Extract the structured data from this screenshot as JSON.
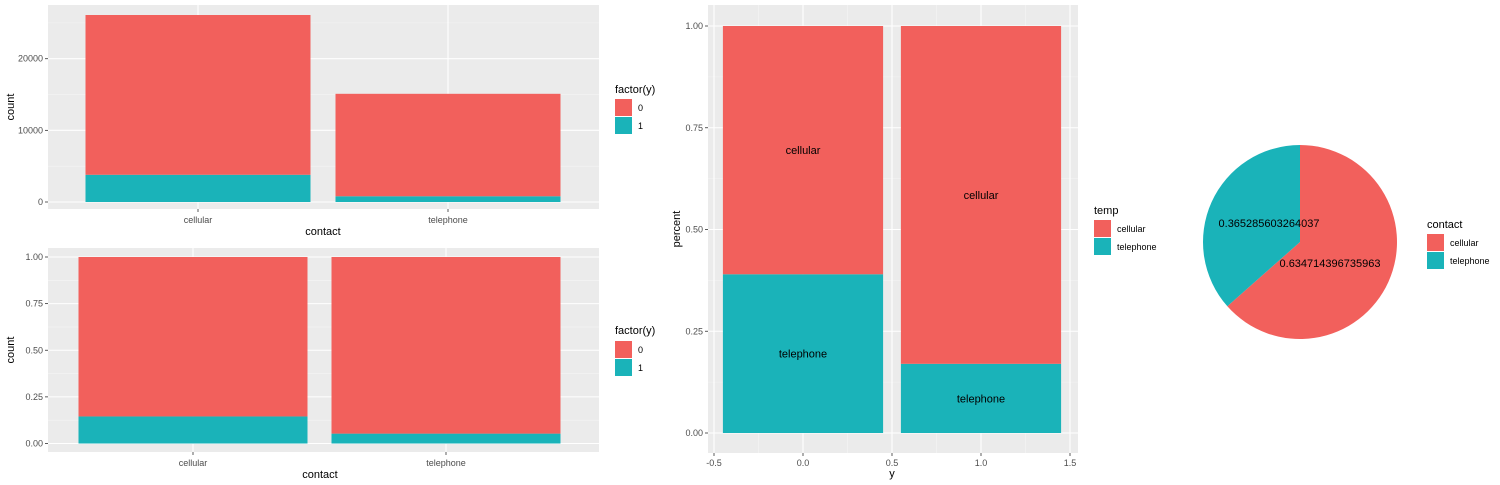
{
  "chart_data": [
    {
      "type": "bar",
      "stacked": true,
      "categories": [
        "cellular",
        "telephone"
      ],
      "series": [
        {
          "name": "0",
          "color": "#F2605C",
          "values": [
            22300,
            14300
          ]
        },
        {
          "name": "1",
          "color": "#1AB3B9",
          "values": [
            3800,
            800
          ]
        }
      ],
      "xlabel": "contact",
      "ylabel": "count",
      "ylim": [
        0,
        26100
      ],
      "yticks": [
        0,
        10000,
        20000
      ],
      "ytick_labels": [
        "0",
        "10000",
        "20000"
      ],
      "legend_title": "factor(y)",
      "legend_position": "right",
      "grid": true
    },
    {
      "type": "bar",
      "stacked": true,
      "categories": [
        "cellular",
        "telephone"
      ],
      "series": [
        {
          "name": "0",
          "color": "#F2605C",
          "values": [
            0.855,
            0.947
          ]
        },
        {
          "name": "1",
          "color": "#1AB3B9",
          "values": [
            0.145,
            0.053
          ]
        }
      ],
      "xlabel": "contact",
      "ylabel": "count",
      "ylim": [
        0,
        1
      ],
      "yticks": [
        0,
        0.25,
        0.5,
        0.75,
        1
      ],
      "ytick_labels": [
        "0.00",
        "0.25",
        "0.50",
        "0.75",
        "1.00"
      ],
      "legend_title": "factor(y)",
      "legend_position": "right",
      "grid": true
    },
    {
      "type": "bar",
      "stacked": true,
      "x": [
        0,
        1
      ],
      "series": [
        {
          "name": "cellular",
          "color": "#F2605C",
          "values": [
            0.61,
            0.83
          ],
          "labels": [
            "cellular",
            "cellular"
          ]
        },
        {
          "name": "telephone",
          "color": "#1AB3B9",
          "values": [
            0.39,
            0.17
          ],
          "labels": [
            "telephone",
            "telephone"
          ]
        }
      ],
      "xlabel": "y",
      "ylabel": "percent",
      "xlim": [
        -0.5,
        1.5
      ],
      "xticks": [
        -0.5,
        0,
        0.5,
        1,
        1.5
      ],
      "xtick_labels": [
        "-0.5",
        "0.0",
        "0.5",
        "1.0",
        "1.5"
      ],
      "ylim": [
        0,
        1
      ],
      "yticks": [
        0,
        0.25,
        0.5,
        0.75,
        1
      ],
      "ytick_labels": [
        "0.00",
        "0.25",
        "0.50",
        "0.75",
        "1.00"
      ],
      "legend_title": "temp",
      "legend_position": "right",
      "grid": true
    },
    {
      "type": "pie",
      "slices": [
        {
          "name": "cellular",
          "value": 0.634714396735963,
          "label": "0.634714396735963",
          "color": "#F2605C"
        },
        {
          "name": "telephone",
          "value": 0.365285603264037,
          "label": "0.365285603264037",
          "color": "#1AB3B9"
        }
      ],
      "legend_title": "contact",
      "legend_position": "right"
    }
  ]
}
